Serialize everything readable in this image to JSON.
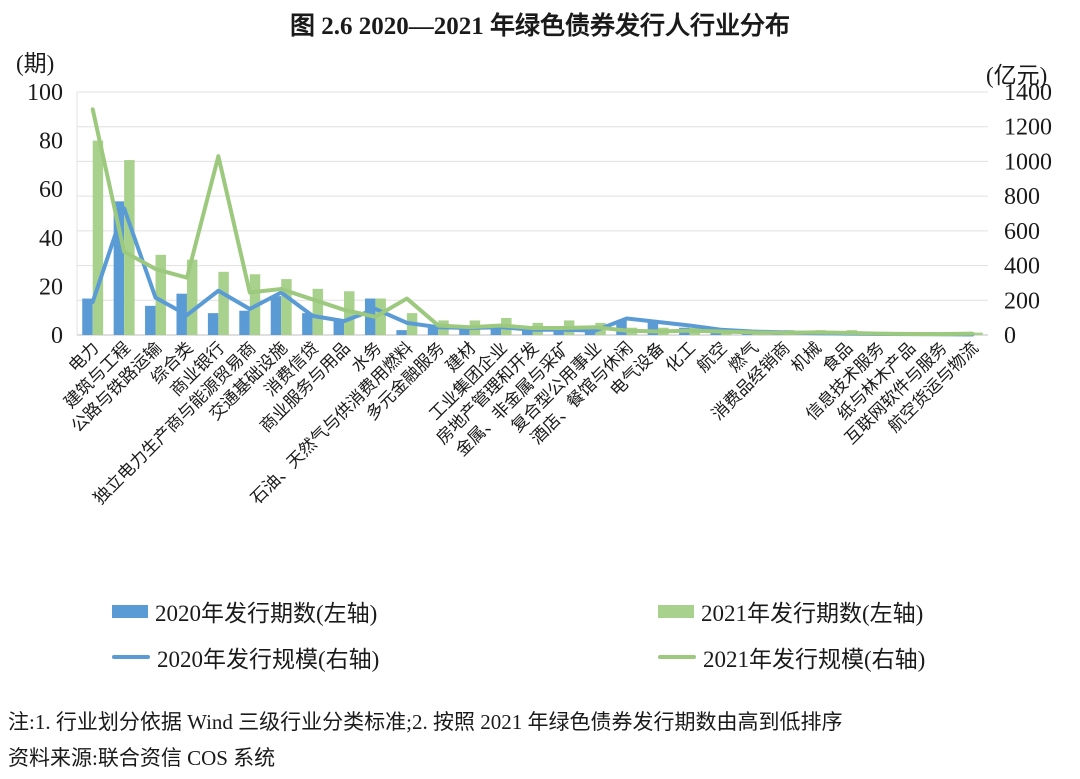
{
  "title": "图 2.6  2020—2021 年绿色债券发行人行业分布",
  "notes": {
    "note1": "注:1. 行业划分依据 Wind 三级行业分类标准;2. 按照 2021 年绿色债券发行期数由高到低排序",
    "note2": "资料来源:联合资信 COS 系统"
  },
  "colors": {
    "bar_2020_blue": "#5B9BD5",
    "bar_2021_green": "#A9D18E",
    "line_2020_blue": "#5B9BD5",
    "line_2021_green": "#9CC97E",
    "gridline": "#e0e0e0",
    "baseline": "#bfbfbf"
  },
  "chart_data": {
    "type": "bar",
    "subtype": "dual-axis bar + line combo",
    "grid": true,
    "legend_position": "bottom",
    "left_axis": {
      "unit": "(期)",
      "min": 0,
      "max": 100,
      "ticks": [
        0,
        20,
        40,
        60,
        80,
        100
      ]
    },
    "right_axis": {
      "unit": "(亿元)",
      "min": 0,
      "max": 1400,
      "ticks": [
        0,
        200,
        400,
        600,
        800,
        1000,
        1200,
        1400
      ]
    },
    "categories": [
      "电力",
      "建筑与工程",
      "公路与铁路运输",
      "综合类",
      "商业银行",
      "独立电力生产商与能源贸易商",
      "交通基础设施",
      "消费信贷",
      "商业服务与用品",
      "水务",
      "石油、天然气与供消费用燃料",
      "多元金融服务",
      "建材",
      "工业集团企业",
      "房地产管理和开发",
      "金属、非金属与采矿",
      "复合型公用事业",
      "酒店、餐馆与休闲",
      "电气设备",
      "化工",
      "航空",
      "燃气",
      "消费品经销商",
      "机械",
      "食品",
      "信息技术服务",
      "纸与林木产品",
      "互联网软件与服务",
      "航空货运与物流"
    ],
    "series": [
      {
        "name": "2020年发行期数(左轴)",
        "type": "bar",
        "axis": "left",
        "color": "#5B9BD5",
        "values": [
          15,
          55,
          12,
          17,
          9,
          10,
          16,
          9,
          6,
          15,
          2,
          4,
          3,
          4,
          3,
          2,
          2,
          6,
          5,
          3,
          2,
          1,
          1,
          1,
          0,
          0,
          0,
          0,
          0
        ]
      },
      {
        "name": "2021年发行期数(左轴)",
        "type": "bar",
        "axis": "left",
        "color": "#A9D18E",
        "values": [
          80,
          72,
          33,
          31,
          26,
          25,
          23,
          19,
          18,
          15,
          9,
          6,
          6,
          7,
          5,
          6,
          5,
          3,
          3,
          3,
          2,
          2,
          2,
          2,
          2,
          1,
          1,
          1,
          1
        ]
      },
      {
        "name": "2020年发行规模(右轴)",
        "type": "line",
        "axis": "right",
        "color": "#5B9BD5",
        "values": [
          190,
          730,
          215,
          115,
          255,
          150,
          245,
          110,
          80,
          150,
          70,
          45,
          40,
          45,
          30,
          30,
          25,
          95,
          75,
          55,
          30,
          20,
          15,
          10,
          8,
          6,
          5,
          4,
          3
        ]
      },
      {
        "name": "2021年发行规模(右轴)",
        "type": "line",
        "axis": "right",
        "color": "#9CC97E",
        "values": [
          1300,
          480,
          380,
          330,
          1030,
          245,
          265,
          205,
          145,
          105,
          210,
          55,
          45,
          55,
          40,
          40,
          45,
          25,
          20,
          25,
          20,
          15,
          12,
          15,
          12,
          8,
          6,
          5,
          8
        ]
      }
    ]
  }
}
